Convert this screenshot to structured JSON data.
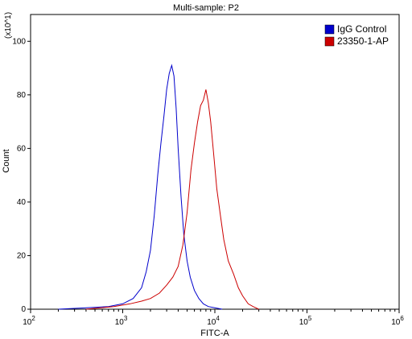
{
  "chart_data": {
    "type": "line",
    "title": "Multi-sample: P2",
    "xlabel": "FITC-A",
    "ylabel": "Count",
    "y_scale_note": "(x10^1)",
    "x_scale": "log",
    "xlim": [
      100,
      1000000
    ],
    "ylim": [
      0,
      110
    ],
    "x_ticks": [
      {
        "value": 100,
        "base": "10",
        "exp": "2"
      },
      {
        "value": 1000,
        "base": "10",
        "exp": "3"
      },
      {
        "value": 10000,
        "base": "10",
        "exp": "4"
      },
      {
        "value": 100000,
        "base": "10",
        "exp": "5"
      },
      {
        "value": 1000000,
        "base": "10",
        "exp": "6"
      }
    ],
    "y_ticks": [
      0,
      20,
      40,
      60,
      80,
      100
    ],
    "legend_position": "top-right",
    "series": [
      {
        "name": "IgG Control",
        "color": "#0000cc",
        "x": [
          200,
          400,
          700,
          1000,
          1300,
          1600,
          1800,
          2000,
          2200,
          2400,
          2600,
          2800,
          3000,
          3200,
          3400,
          3600,
          3800,
          4000,
          4300,
          4600,
          5000,
          5400,
          6000,
          6700,
          7500,
          8500,
          10000,
          12000
        ],
        "y": [
          0,
          0.5,
          1,
          2,
          4,
          8,
          14,
          22,
          35,
          50,
          62,
          72,
          82,
          88,
          91,
          87,
          75,
          60,
          42,
          28,
          18,
          12,
          7,
          4,
          2,
          1,
          0.5,
          0
        ]
      },
      {
        "name": "23350-1-AP",
        "color": "#cc0000",
        "x": [
          400,
          800,
          1200,
          1600,
          2000,
          2500,
          3000,
          3500,
          4000,
          4500,
          5000,
          5500,
          6000,
          6500,
          7000,
          7500,
          8000,
          8500,
          9000,
          9700,
          10500,
          11500,
          12500,
          14000,
          16000,
          18000,
          20000,
          23000,
          26000,
          30000
        ],
        "y": [
          0,
          1,
          2,
          3,
          4,
          6,
          9,
          12,
          16,
          24,
          36,
          52,
          62,
          70,
          76,
          78,
          82,
          77,
          70,
          58,
          45,
          35,
          26,
          18,
          13,
          8,
          5,
          2,
          1,
          0
        ]
      }
    ]
  }
}
